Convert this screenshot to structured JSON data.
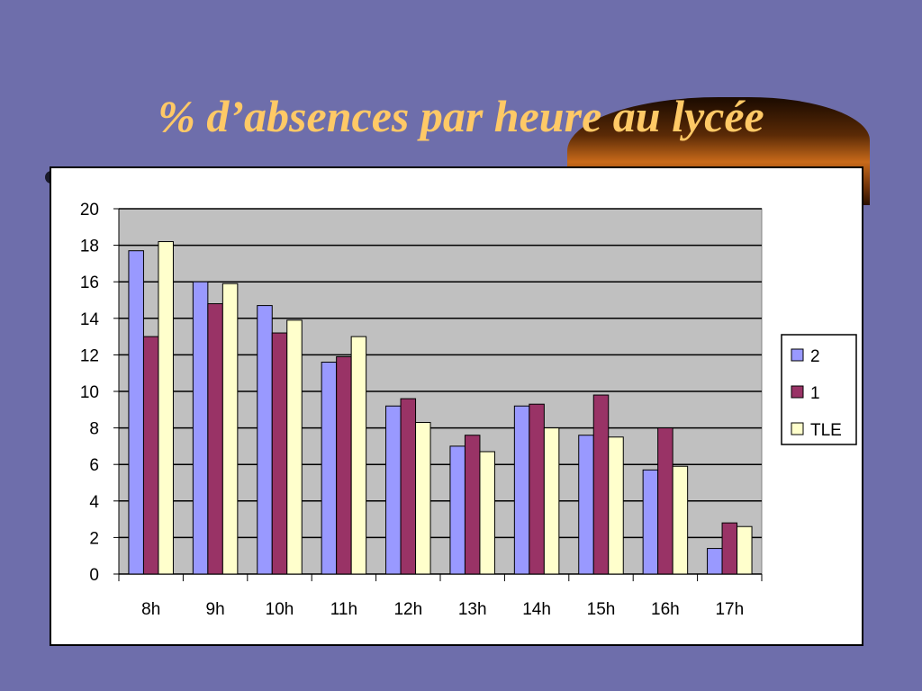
{
  "slide": {
    "title": "% d’absences par heure au lycée"
  },
  "colors": {
    "background": "#6e6eab",
    "title": "#ffc966",
    "plot_area": "#c0c0c0"
  },
  "chart_data": {
    "type": "bar",
    "title": "",
    "xlabel": "",
    "ylabel": "",
    "categories": [
      "8h",
      "9h",
      "10h",
      "11h",
      "12h",
      "13h",
      "14h",
      "15h",
      "16h",
      "17h"
    ],
    "series": [
      {
        "name": "2",
        "color": "#9999ff",
        "values": [
          17.7,
          16.0,
          14.7,
          11.6,
          9.2,
          7.0,
          9.2,
          7.6,
          5.7,
          1.4
        ]
      },
      {
        "name": "1",
        "color": "#993366",
        "values": [
          13.0,
          14.8,
          13.2,
          11.9,
          9.6,
          7.6,
          9.3,
          9.8,
          8.0,
          2.8
        ]
      },
      {
        "name": "TLE",
        "color": "#ffffcc",
        "values": [
          18.2,
          15.9,
          13.9,
          13.0,
          8.3,
          6.7,
          8.0,
          7.5,
          5.9,
          2.6
        ]
      }
    ],
    "ylim": [
      0,
      20
    ],
    "yticks": [
      0,
      2,
      4,
      6,
      8,
      10,
      12,
      14,
      16,
      18,
      20
    ],
    "grid": true,
    "legend_position": "right"
  }
}
